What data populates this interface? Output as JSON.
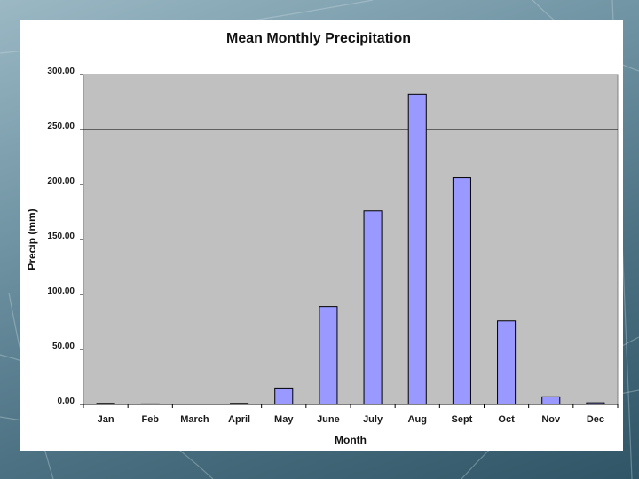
{
  "chart_data": {
    "type": "bar",
    "title": "Mean Monthly Precipitation",
    "xlabel": "Month",
    "ylabel": "Precip (mm)",
    "categories": [
      "Jan",
      "Feb",
      "March",
      "April",
      "May",
      "June",
      "July",
      "Aug",
      "Sept",
      "Oct",
      "Nov",
      "Dec"
    ],
    "values": [
      1,
      0.5,
      0,
      1,
      15,
      89,
      176,
      282,
      206,
      76,
      7,
      1.5
    ],
    "ylim": [
      0,
      300
    ],
    "yticks": [
      0,
      50,
      100,
      150,
      200,
      250,
      300
    ],
    "ytick_labels": [
      "0.00",
      "50.00",
      "100.00",
      "150.00",
      "200.00",
      "250.00",
      "300.00"
    ],
    "gridlines": [
      250
    ],
    "grid": false,
    "legend": "none"
  },
  "colors": {
    "bar_fill": "#9999ff",
    "bar_stroke": "#000000",
    "plot_bg": "#c0c0c0",
    "chart_bg": "#ffffff"
  }
}
